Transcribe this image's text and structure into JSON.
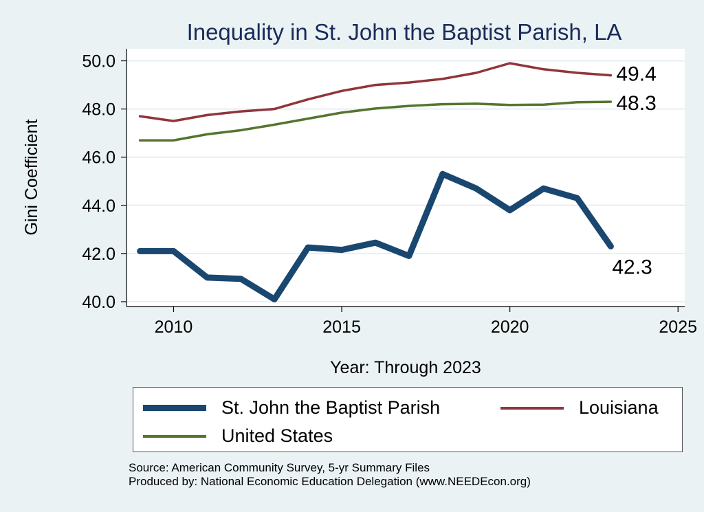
{
  "chart_data": {
    "type": "line",
    "title": "Inequality in St. John the Baptist Parish, LA",
    "xlabel": "Year: Through 2023",
    "ylabel": "Gini Coefficient",
    "xlim": [
      2008.6,
      2025.2
    ],
    "ylim": [
      39.8,
      50.5
    ],
    "x_ticks": [
      2010,
      2015,
      2020,
      2025
    ],
    "y_ticks": [
      40,
      42,
      44,
      46,
      48,
      50
    ],
    "y_tick_labels": [
      "40.0",
      "42.0",
      "44.0",
      "46.0",
      "48.0",
      "50.0"
    ],
    "grid": true,
    "x": [
      2009,
      2010,
      2011,
      2012,
      2013,
      2014,
      2015,
      2016,
      2017,
      2018,
      2019,
      2020,
      2021,
      2022,
      2023
    ],
    "series": [
      {
        "name": "St. John the Baptist Parish",
        "color": "#1a476f",
        "values": [
          42.1,
          42.1,
          41.0,
          40.95,
          40.1,
          42.25,
          42.15,
          42.45,
          41.9,
          45.3,
          44.7,
          43.8,
          44.7,
          44.3,
          42.3
        ],
        "end_label": "42.3"
      },
      {
        "name": "Louisiana",
        "color": "#90353b",
        "values": [
          47.7,
          47.5,
          47.75,
          47.9,
          48.0,
          48.4,
          48.75,
          49.0,
          49.1,
          49.25,
          49.5,
          49.9,
          49.65,
          49.5,
          49.4
        ],
        "end_label": "49.4"
      },
      {
        "name": "United States",
        "color": "#55752f",
        "values": [
          46.7,
          46.7,
          46.95,
          47.12,
          47.35,
          47.6,
          47.85,
          48.02,
          48.13,
          48.2,
          48.22,
          48.17,
          48.18,
          48.28,
          48.3
        ],
        "end_label": "48.3"
      }
    ],
    "legend": {
      "placement": "bottom",
      "entries": [
        "St. John the Baptist Parish",
        "Louisiana",
        "United States"
      ]
    },
    "notes": [
      "Source: American Community Survey, 5-yr Summary Files",
      "Produced by: National Economic Education Delegation (www.NEEDEcon.org)"
    ]
  }
}
